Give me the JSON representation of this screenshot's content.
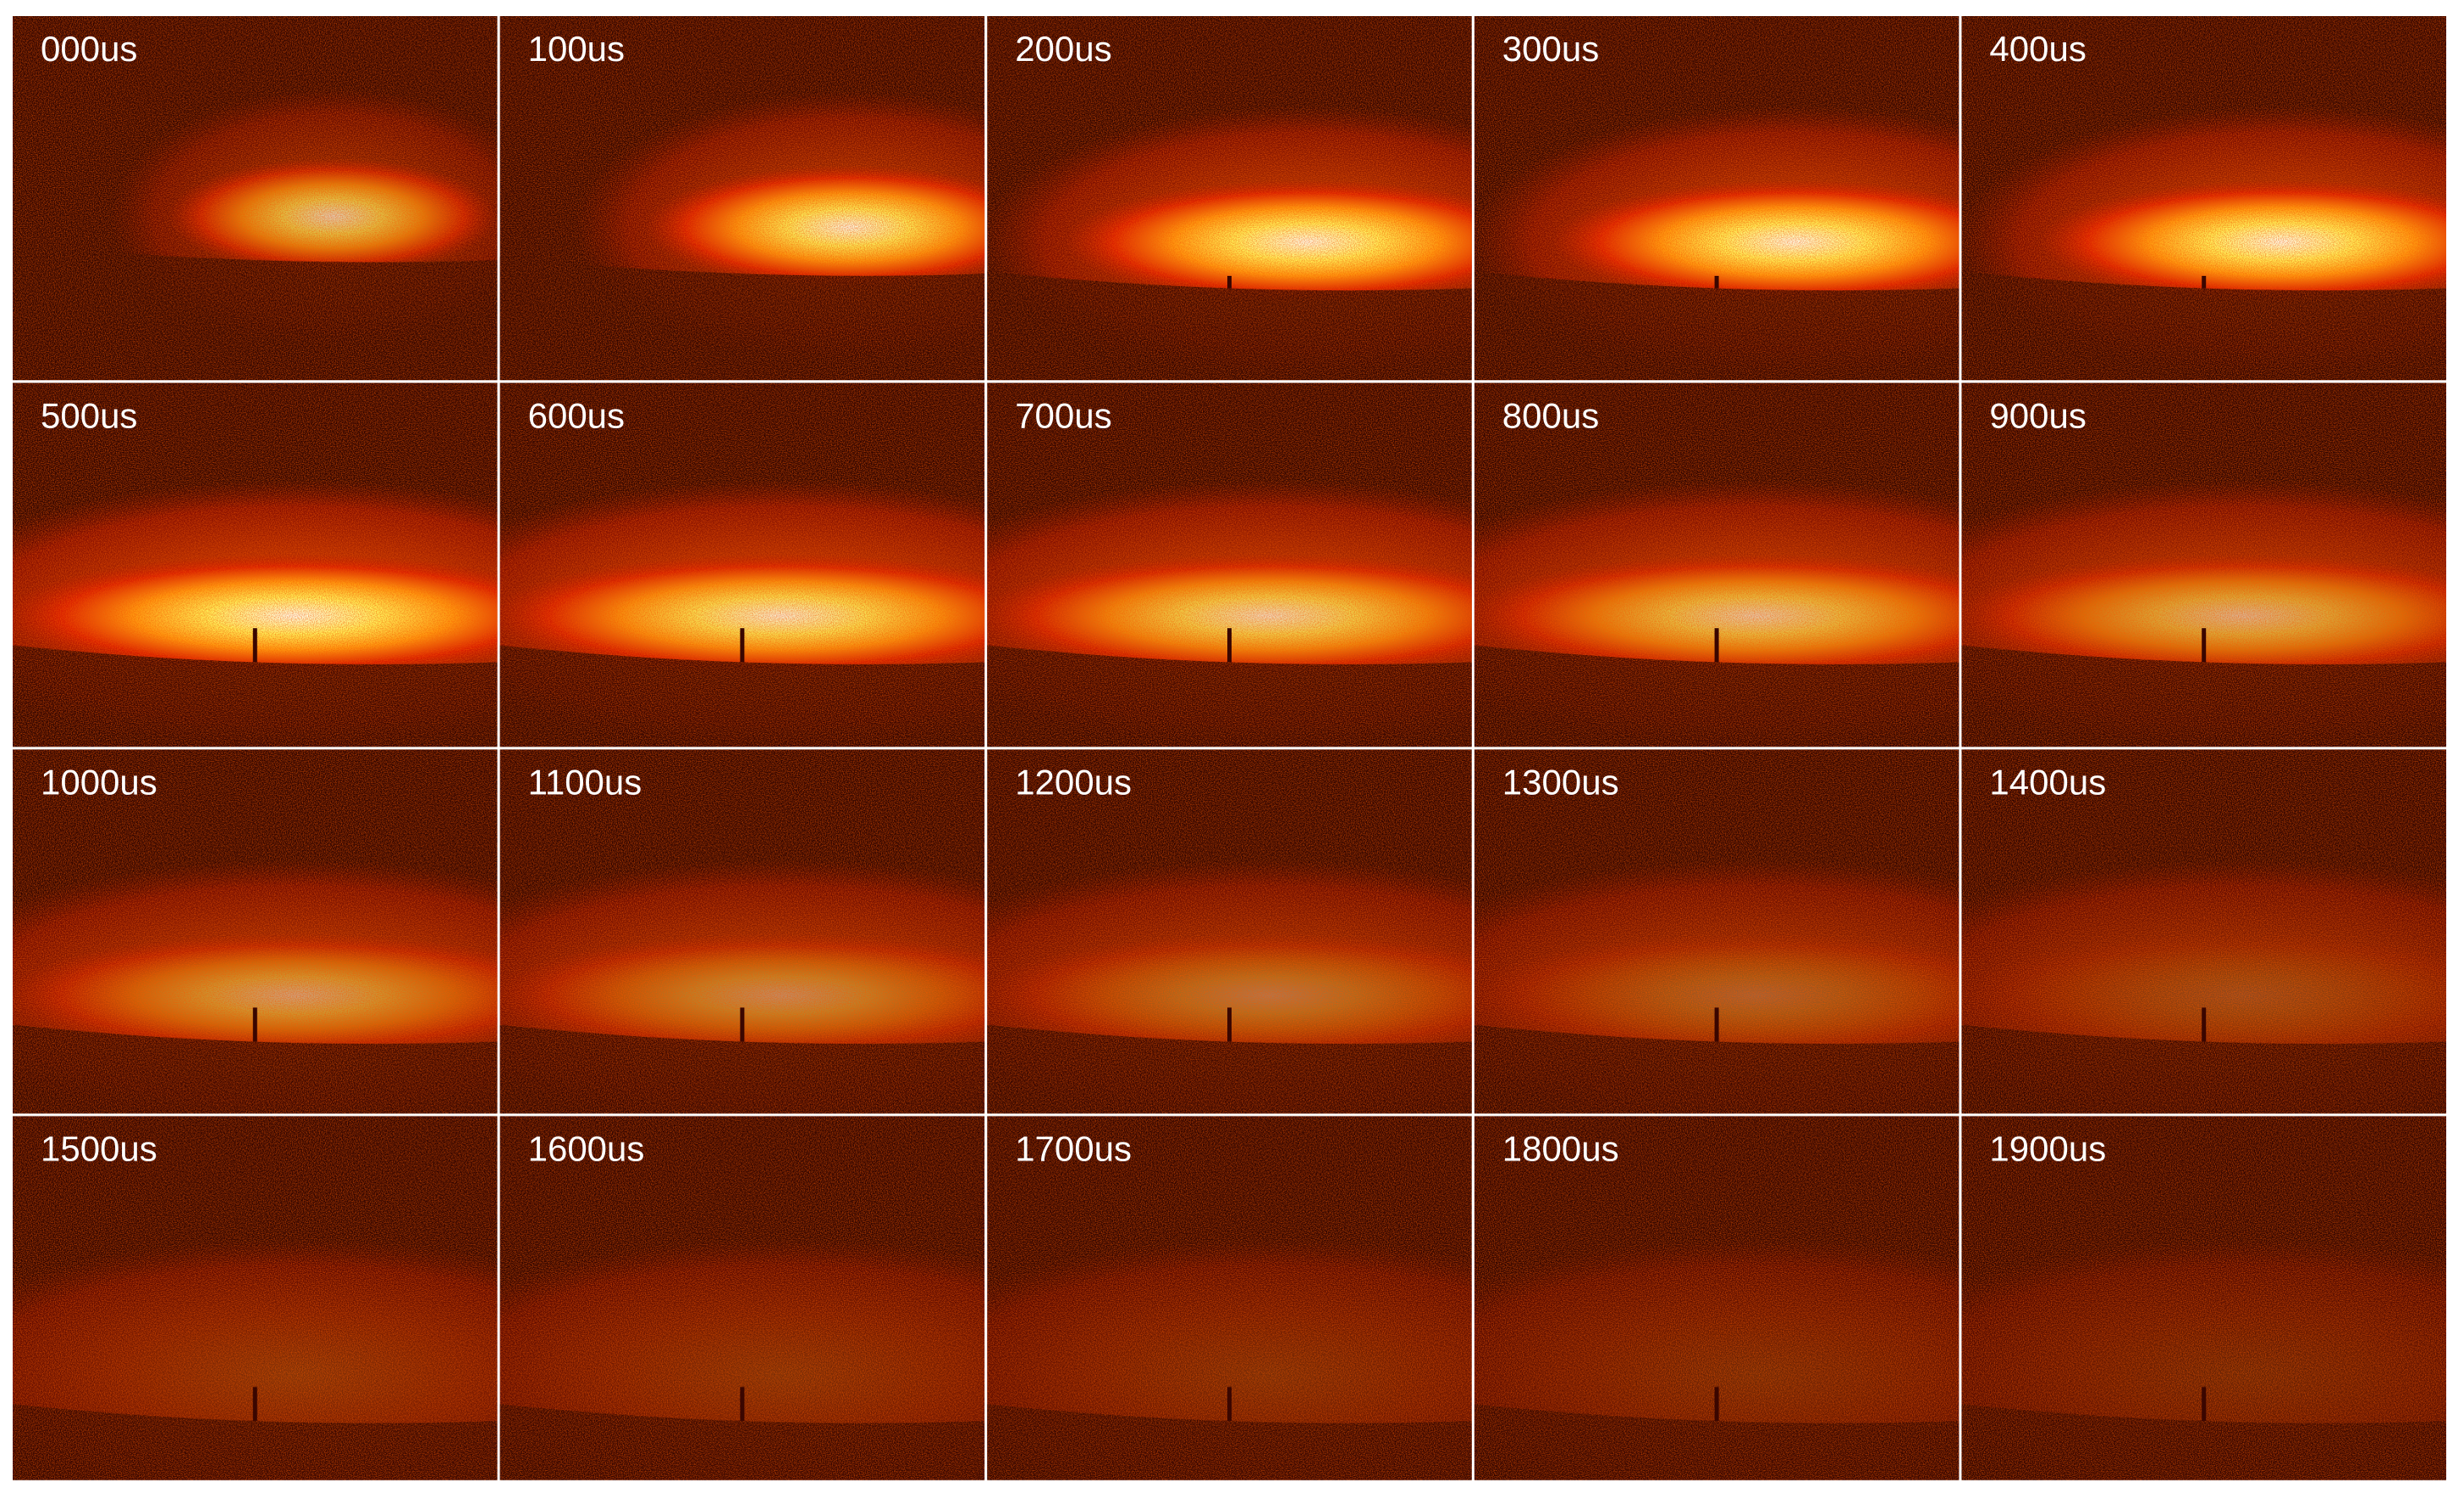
{
  "frames": [
    {
      "label": "000us"
    },
    {
      "label": "100us"
    },
    {
      "label": "200us"
    },
    {
      "label": "300us"
    },
    {
      "label": "400us"
    },
    {
      "label": "500us"
    },
    {
      "label": "600us"
    },
    {
      "label": "700us"
    },
    {
      "label": "800us"
    },
    {
      "label": "900us"
    },
    {
      "label": "1000us"
    },
    {
      "label": "1100us"
    },
    {
      "label": "1200us"
    },
    {
      "label": "1300us"
    },
    {
      "label": "1400us"
    },
    {
      "label": "1500us"
    },
    {
      "label": "1600us"
    },
    {
      "label": "1700us"
    },
    {
      "label": "1800us"
    },
    {
      "label": "1900us"
    }
  ]
}
